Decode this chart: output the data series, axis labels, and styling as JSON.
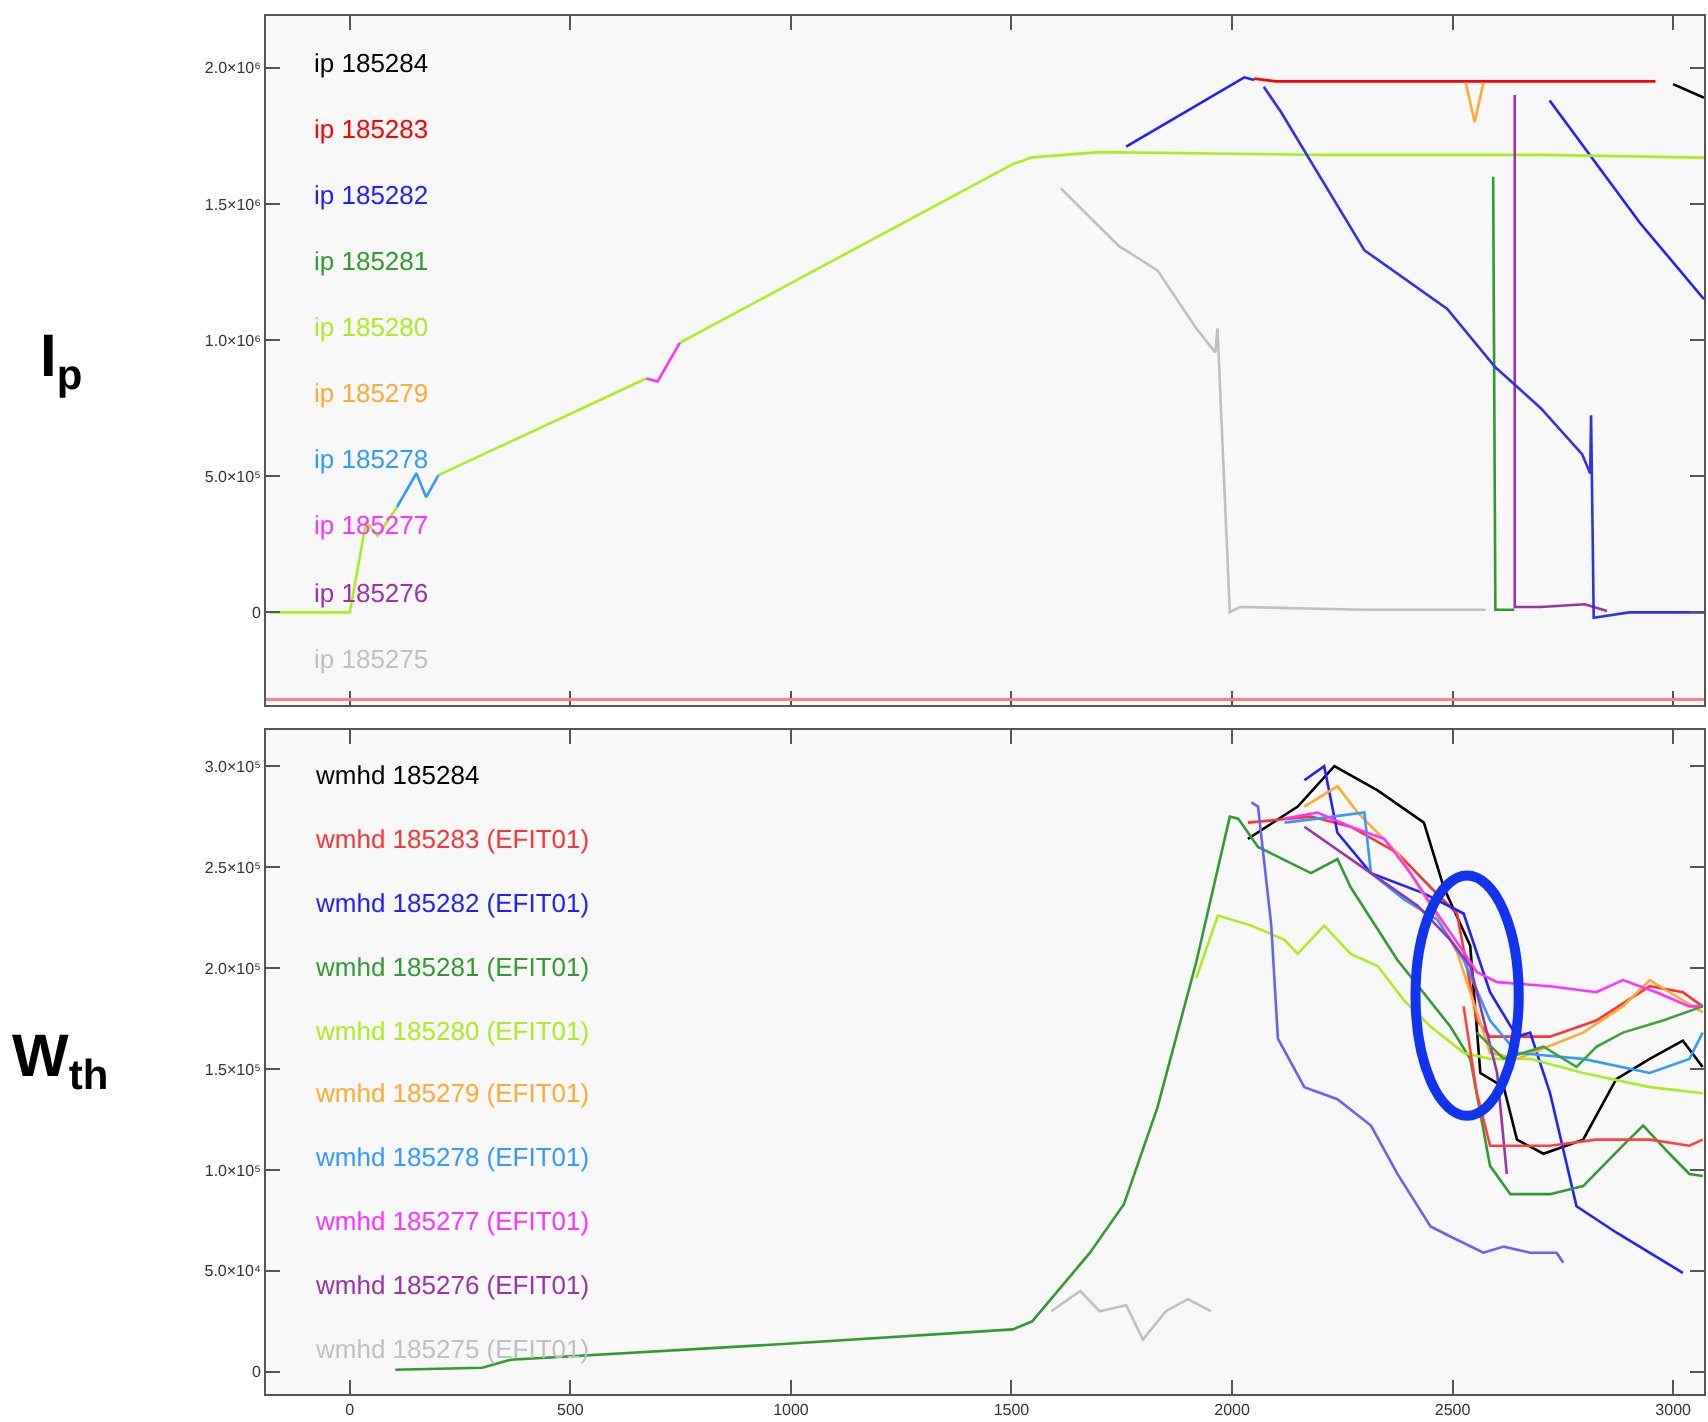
{
  "chart_data": [
    {
      "type": "line",
      "ylabel": "I$_{p}$",
      "legend": "left",
      "marker": "none",
      "line_style": "solid",
      "grid": false,
      "tick_labels": "y",
      "xlim": [
        -190,
        3070
      ],
      "xticks": [
        {
          "value": 0,
          "label": null
        },
        {
          "value": 500,
          "label": null
        },
        {
          "value": 1000,
          "label": null
        },
        {
          "value": 1500,
          "label": null
        },
        {
          "value": 2000,
          "label": null
        },
        {
          "value": 2500,
          "label": null
        },
        {
          "value": 3000,
          "label": null
        }
      ],
      "ylim": [
        -340000,
        2190000
      ],
      "yticks": [
        {
          "value": 0,
          "label": "0"
        },
        {
          "value": 500000,
          "label": "5.0×10⁵"
        },
        {
          "value": 1000000,
          "label": "1.0×10⁶"
        },
        {
          "value": 1500000,
          "label": "1.5×10⁶"
        },
        {
          "value": 2000000,
          "label": "2.0×10⁶"
        }
      ],
      "ref_lines": [
        {
          "axis": "y",
          "value": -320000,
          "color": "#ff8080"
        }
      ],
      "series": [
        {
          "name": "ip 185284",
          "color": "#000000",
          "x": [
            3000,
            3070
          ],
          "values": [
            1940000,
            1890000
          ]
        },
        {
          "name": "ip 185283",
          "color": "#ff0000",
          "x": [
            2050,
            2100,
            2500,
            2960
          ],
          "values": [
            1960000,
            1950000,
            1950000,
            1950000
          ]
        },
        {
          "name": "ip 185282",
          "color": "#2020ff",
          "x": [
            1760,
            2028,
            2050,
            2060,
            2720,
            2925,
            3070
          ],
          "values": [
            1710000,
            1965000,
            1955000,
            null,
            1880000,
            1430000,
            1150000
          ]
        },
        {
          "name": "ip 185281",
          "color": "#339933",
          "x": [
            2592,
            2597,
            2640
          ],
          "values": [
            1600000,
            10000,
            10000
          ]
        },
        {
          "name": "ip 185280",
          "color": "#aaee22",
          "x": [
            -182,
            0,
            37,
            63,
            107,
            130,
            201,
            672,
            690,
            748,
            1503,
            1547,
            1700,
            2200,
            2700,
            3070
          ],
          "values": [
            0,
            0,
            334000,
            281000,
            387000,
            null,
            504000,
            859000,
            null,
            990000,
            1646000,
            1671000,
            1690000,
            1680000,
            1680000,
            1670000
          ]
        },
        {
          "name": "ip 185279",
          "color": "#ffaa33",
          "x": [
            2530,
            2550,
            2570
          ],
          "values": [
            1945000,
            1800000,
            1945000
          ]
        },
        {
          "name": "ip 185278",
          "color": "#3399ff",
          "x": [
            107,
            151,
            173,
            201
          ],
          "values": [
            387000,
            511000,
            423000,
            504000
          ]
        },
        {
          "name": "ip 185277",
          "color": "#ff33ff",
          "x": [
            672,
            698,
            748
          ],
          "values": [
            859000,
            848000,
            990000
          ]
        },
        {
          "name": "ip 185276",
          "color": "#9933aa",
          "x": [
            2641,
            2641,
            2700,
            2800,
            2850
          ],
          "values": [
            1900000,
            20000,
            20000,
            30000,
            5000
          ]
        },
        {
          "name": "ip 185275",
          "color": "#c0c0c0",
          "x": [
            1612,
            1744,
            1831,
            1919,
            1962,
            1967,
            1995,
            2017,
            2300,
            2575
          ],
          "values": [
            1557000,
            1345000,
            1256000,
            1043000,
            955000,
            1043000,
            0,
            20000,
            10000,
            10000
          ]
        },
        {
          "color": "#3030e8",
          "x": [
            2072,
            2110,
            2300,
            2488,
            2597,
            2700,
            2794,
            2812,
            2814,
            2820,
            2900,
            3070
          ],
          "values": [
            1930000,
            1840000,
            1330000,
            1114000,
            900000,
            750000,
            580000,
            510000,
            724000,
            -20000,
            0,
            0
          ]
        }
      ]
    },
    {
      "type": "line",
      "ylabel": "W$_{th}$",
      "legend": "left",
      "marker": "none",
      "line_style": "solid",
      "grid": false,
      "xlim": [
        -190,
        3070
      ],
      "xticks": [
        0,
        500,
        1000,
        1500,
        2000,
        2500,
        3000
      ],
      "ylim": [
        -11000,
        318000
      ],
      "yticks": [
        {
          "value": 0,
          "label": "0"
        },
        {
          "value": 50000,
          "label": "5.0×10⁴"
        },
        {
          "value": 100000,
          "label": "1.0×10⁵"
        },
        {
          "value": 150000,
          "label": "1.5×10⁵"
        },
        {
          "value": 200000,
          "label": "2.0×10⁵"
        },
        {
          "value": 250000,
          "label": "2.5×10⁵"
        },
        {
          "value": 300000,
          "label": "3.0×10⁵"
        }
      ],
      "series": [
        {
          "name": "wmhd 185284",
          "color": "#000000",
          "x": [
            2036,
            2149,
            2232,
            2330,
            2435,
            2480,
            2540,
            2563,
            2616,
            2646,
            2706,
            2796,
            2871,
            2947,
            3022,
            3067
          ],
          "values": [
            264000,
            280000,
            300000,
            288000,
            272000,
            240000,
            211000,
            148000,
            141000,
            115000,
            108000,
            115000,
            145000,
            155000,
            164000,
            151000
          ]
        },
        {
          "name": "wmhd 185283 (EFIT01)",
          "color": "#ff3333",
          "x": [
            2036,
            2179,
            2269,
            2375,
            2450,
            2510,
            2555,
            2585,
            2721,
            2826,
            2947,
            3022,
            3067
          ],
          "values": [
            272000,
            275000,
            270000,
            257000,
            240000,
            227000,
            174000,
            166000,
            166000,
            174000,
            191000,
            188000,
            181000
          ]
        },
        {
          "name": "wmhd 185282 (EFIT01)",
          "color": "#2020ff",
          "x": [
            2164,
            2209,
            2239,
            2315,
            2435,
            2525,
            2585,
            2646,
            2676,
            2721,
            2781,
            2871,
            3022
          ],
          "values": [
            293000,
            300000,
            267000,
            247000,
            237000,
            227000,
            188000,
            166000,
            168000,
            138000,
            82000,
            69000,
            49000
          ]
        },
        {
          "name": "wmhd 185281 (EFIT01)",
          "color": "#339933",
          "x": [
            103,
            300,
            365,
            1000,
            1503,
            1547,
            1678,
            1755,
            1831,
            1919,
            1995,
            2014,
            2059,
            2179,
            2239,
            2269,
            2375,
            2495,
            2540,
            2585,
            2631,
            2721,
            2796,
            2886,
            2932,
            2992,
            3037,
            3067
          ],
          "values": [
            1000,
            2000,
            6000,
            14000,
            21000,
            25000,
            59000,
            83000,
            131000,
            203000,
            275000,
            274000,
            260000,
            247000,
            254000,
            240000,
            204000,
            171000,
            155000,
            102000,
            88000,
            88000,
            92000,
            112000,
            122000,
            108000,
            98000,
            97000
          ]
        },
        {
          "name": "wmhd 185280 (EFIT01)",
          "color": "#aaee22",
          "x": [
            1919,
            1968,
            2044,
            2119,
            2149,
            2209,
            2269,
            2330,
            2390,
            2450,
            2525,
            2585,
            2676,
            2796,
            2947,
            3067
          ],
          "values": [
            195000,
            226000,
            221000,
            214000,
            207000,
            221000,
            207000,
            201000,
            184000,
            171000,
            158000,
            155000,
            155000,
            148000,
            141000,
            138000
          ]
        },
        {
          "name": "wmhd 185279 (EFIT01)",
          "color": "#ffaa33",
          "x": [
            2164,
            2239,
            2285,
            2375,
            2450,
            2510,
            2555,
            2585,
            2646,
            2796,
            2886,
            2947,
            2992,
            3067
          ],
          "values": [
            280000,
            290000,
            277000,
            257000,
            231000,
            208000,
            178000,
            158000,
            155000,
            168000,
            181000,
            194000,
            188000,
            178000
          ]
        },
        {
          "name": "wmhd 185278 (EFIT01)",
          "color": "#3399ff",
          "x": [
            2119,
            2194,
            2300,
            2315,
            2390,
            2465,
            2525,
            2585,
            2646,
            2796,
            2947,
            3037,
            3067
          ],
          "values": [
            272000,
            274000,
            277000,
            247000,
            234000,
            224000,
            204000,
            174000,
            158000,
            155000,
            148000,
            155000,
            168000
          ]
        },
        {
          "name": "wmhd 185277 (EFIT01)",
          "color": "#ff33ff",
          "x": [
            2119,
            2194,
            2269,
            2345,
            2405,
            2465,
            2525,
            2555,
            2601,
            2721,
            2826,
            2886,
            2962,
            3037,
            3067
          ],
          "values": [
            274000,
            277000,
            270000,
            264000,
            247000,
            227000,
            208000,
            198000,
            193000,
            191000,
            188000,
            194000,
            188000,
            181000,
            181000
          ]
        },
        {
          "name": "wmhd 185276 (EFIT01)",
          "color": "#9933aa",
          "x": [
            2164,
            2315,
            2420,
            2495,
            2540,
            2601,
            2623
          ],
          "values": [
            270000,
            247000,
            231000,
            214000,
            201000,
            148000,
            98000
          ]
        },
        {
          "name": "wmhd 185275 (EFIT01)",
          "color": "#c0c0c0",
          "x": [
            1590,
            1656,
            1700,
            1760,
            1798,
            1850,
            1900,
            1952
          ],
          "values": [
            30000,
            40000,
            30000,
            33000,
            16000,
            30000,
            36000,
            30000
          ]
        },
        {
          "color": "#ff4040",
          "x": [
            2525,
            2555,
            2585,
            2721,
            2826,
            2947,
            3037,
            3067
          ],
          "values": [
            181000,
            138000,
            112000,
            112000,
            115000,
            115000,
            112000,
            115000
          ]
        },
        {
          "color": "#6464f0",
          "x": [
            2044,
            2059,
            2089,
            2104,
            2164,
            2239,
            2315,
            2375,
            2450,
            2495,
            2570,
            2616,
            2676,
            2736,
            2751
          ],
          "values": [
            282000,
            280000,
            221000,
            165000,
            141000,
            135000,
            122000,
            98000,
            72000,
            67000,
            59000,
            62000,
            59000,
            59000,
            54000
          ]
        },
        {
          "color": "#40a040",
          "x": [
            2555,
            2616,
            2706,
            2781,
            2826,
            2886,
            2977,
            3067
          ],
          "values": [
            168000,
            155000,
            161000,
            151000,
            161000,
            168000,
            174000,
            181000
          ]
        }
      ]
    }
  ]
}
